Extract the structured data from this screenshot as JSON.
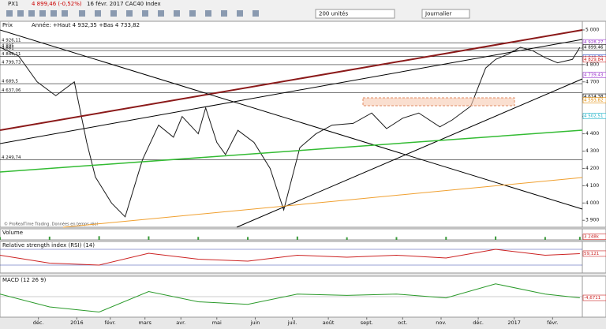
{
  "toolbar": {
    "symbol": "PX1",
    "last": "4 899,46 (-0,52%)",
    "info": "16 févr. 2017 CAC40 Index",
    "units": "200 unités",
    "period": "Journalier"
  },
  "chart_data": [
    {
      "type": "line",
      "title": "Prix",
      "subtitle": "Année: +Haut 4 932,35 +Bas 4 733,82",
      "note": "© ProRealTime Trading. Données en temps réel",
      "x": [
        0,
        15,
        30,
        45,
        60,
        70,
        77,
        90,
        101,
        115,
        128,
        140,
        147,
        160,
        166,
        175,
        182,
        192,
        205,
        218,
        229,
        242,
        255,
        268,
        285,
        300,
        312,
        325,
        338,
        355,
        365,
        380,
        392,
        400,
        410,
        420,
        430,
        440,
        450,
        462,
        468
      ],
      "series": [
        {
          "name": "CAC40",
          "color": "#1a1a1a",
          "values": [
            4900,
            4850,
            4700,
            4620,
            4700,
            4350,
            4150,
            4000,
            3920,
            4250,
            4450,
            4380,
            4500,
            4400,
            4550,
            4350,
            4280,
            4420,
            4350,
            4200,
            3960,
            4320,
            4400,
            4450,
            4460,
            4520,
            4430,
            4490,
            4520,
            4440,
            4480,
            4560,
            4780,
            4830,
            4860,
            4900,
            4880,
            4840,
            4810,
            4830,
            4899.46
          ]
        }
      ],
      "xlim": [
        0,
        470
      ],
      "ylim": [
        3860,
        5050
      ],
      "xticks": [
        {
          "value": 31,
          "label": "déc."
        },
        {
          "value": 62,
          "label": "2016"
        },
        {
          "value": 89,
          "label": "févr."
        },
        {
          "value": 117,
          "label": "mars"
        },
        {
          "value": 146,
          "label": "avr."
        },
        {
          "value": 175,
          "label": "mai"
        },
        {
          "value": 206,
          "label": "juin"
        },
        {
          "value": 236,
          "label": "juil."
        },
        {
          "value": 265,
          "label": "août"
        },
        {
          "value": 296,
          "label": "sept."
        },
        {
          "value": 325,
          "label": "oct."
        },
        {
          "value": 356,
          "label": "nov."
        },
        {
          "value": 386,
          "label": "déc."
        },
        {
          "value": 415,
          "label": "2017"
        },
        {
          "value": 446,
          "label": "févr."
        }
      ],
      "yticks": [
        {
          "value": 5000,
          "label": "5 000"
        },
        {
          "value": 4900,
          "label": "4 900"
        },
        {
          "value": 4800,
          "label": "4 800"
        },
        {
          "value": 4700,
          "label": "4 700"
        },
        {
          "value": 4600,
          "label": "4 600"
        },
        {
          "value": 4500,
          "label": "4 500"
        },
        {
          "value": 4400,
          "label": "4 400"
        },
        {
          "value": 4300,
          "label": "4 300"
        },
        {
          "value": 4200,
          "label": "4 200"
        },
        {
          "value": 4100,
          "label": "4 100"
        },
        {
          "value": 4000,
          "label": "4 000"
        },
        {
          "value": 3900,
          "label": "3 900"
        }
      ],
      "annotations": [
        {
          "value": 4928.27,
          "label": "4 928,27",
          "color": "#9933cc"
        },
        {
          "value": 4899.46,
          "label": "4 899,46",
          "color": "#000000"
        },
        {
          "value": 4840.79,
          "label": "4 840,79",
          "color": "#1f3fbf"
        },
        {
          "value": 4829.84,
          "label": "4 829,84",
          "color": "#cc2222"
        },
        {
          "value": 4739.43,
          "label": "4 739,43",
          "color": "#9933cc"
        },
        {
          "value": 4614.38,
          "label": "4 614,38",
          "color": "#000000"
        },
        {
          "value": 4593.82,
          "label": "4 593,82",
          "color": "#e08a00"
        },
        {
          "value": 4502.51,
          "label": "4 502,51",
          "color": "#18b0c8"
        }
      ],
      "levels": [
        {
          "value": 4926.11,
          "label": "4 926,11"
        },
        {
          "value": 4895,
          "label": "4 895"
        },
        {
          "value": 4881,
          "label": "4 881"
        },
        {
          "value": 4846.11,
          "label": "4 846,11"
        },
        {
          "value": 4799.73,
          "label": "4 799,73"
        },
        {
          "value": 4689.5,
          "label": "4 689,5"
        },
        {
          "value": 4637.06,
          "label": "4 637,06"
        },
        {
          "value": 4249.74,
          "label": "4 249,74"
        }
      ]
    },
    {
      "type": "bar",
      "title": "Volume",
      "x": [
        0,
        40,
        80,
        120,
        160,
        200,
        240,
        280,
        320,
        360,
        400,
        440,
        468
      ],
      "series": [
        {
          "name": "Volume",
          "color": "#3a9a3a",
          "values": [
            3000,
            3500,
            4000,
            3800,
            3200,
            3100,
            3600,
            2800,
            3000,
            3300,
            3700,
            3100,
            3248
          ]
        }
      ],
      "xlim": [
        0,
        470
      ],
      "ylim": [
        0,
        12000
      ],
      "annotations": [
        {
          "value": 3248,
          "label": "3 248k",
          "color": "#cc2222"
        }
      ]
    },
    {
      "type": "line",
      "title": "Relative strength index (RSI) (14)",
      "x": [
        0,
        40,
        80,
        120,
        160,
        200,
        240,
        280,
        320,
        360,
        400,
        440,
        468
      ],
      "series": [
        {
          "name": "RSI",
          "color": "#cc2222",
          "values": [
            55,
            35,
            30,
            60,
            45,
            40,
            55,
            50,
            55,
            48,
            70,
            55,
            59.121
          ]
        }
      ],
      "xlim": [
        0,
        470
      ],
      "ylim": [
        10,
        90
      ],
      "annotations": [
        {
          "value": 59.121,
          "label": "59,121",
          "color": "#cc2222"
        }
      ]
    },
    {
      "type": "line",
      "title": "MACD (12 26 9)",
      "x": [
        0,
        40,
        80,
        120,
        160,
        200,
        240,
        280,
        320,
        360,
        400,
        440,
        468
      ],
      "series": [
        {
          "name": "MACD",
          "color": "#2a9a2a",
          "values": [
            10,
            -40,
            -60,
            20,
            -20,
            -30,
            10,
            5,
            10,
            -5,
            50,
            10,
            -4.6711
          ]
        }
      ],
      "xlim": [
        0,
        470
      ],
      "ylim": [
        -80,
        80
      ],
      "annotations": [
        {
          "value": -4.6711,
          "label": "-4,6711",
          "color": "#cc2222"
        }
      ]
    }
  ]
}
